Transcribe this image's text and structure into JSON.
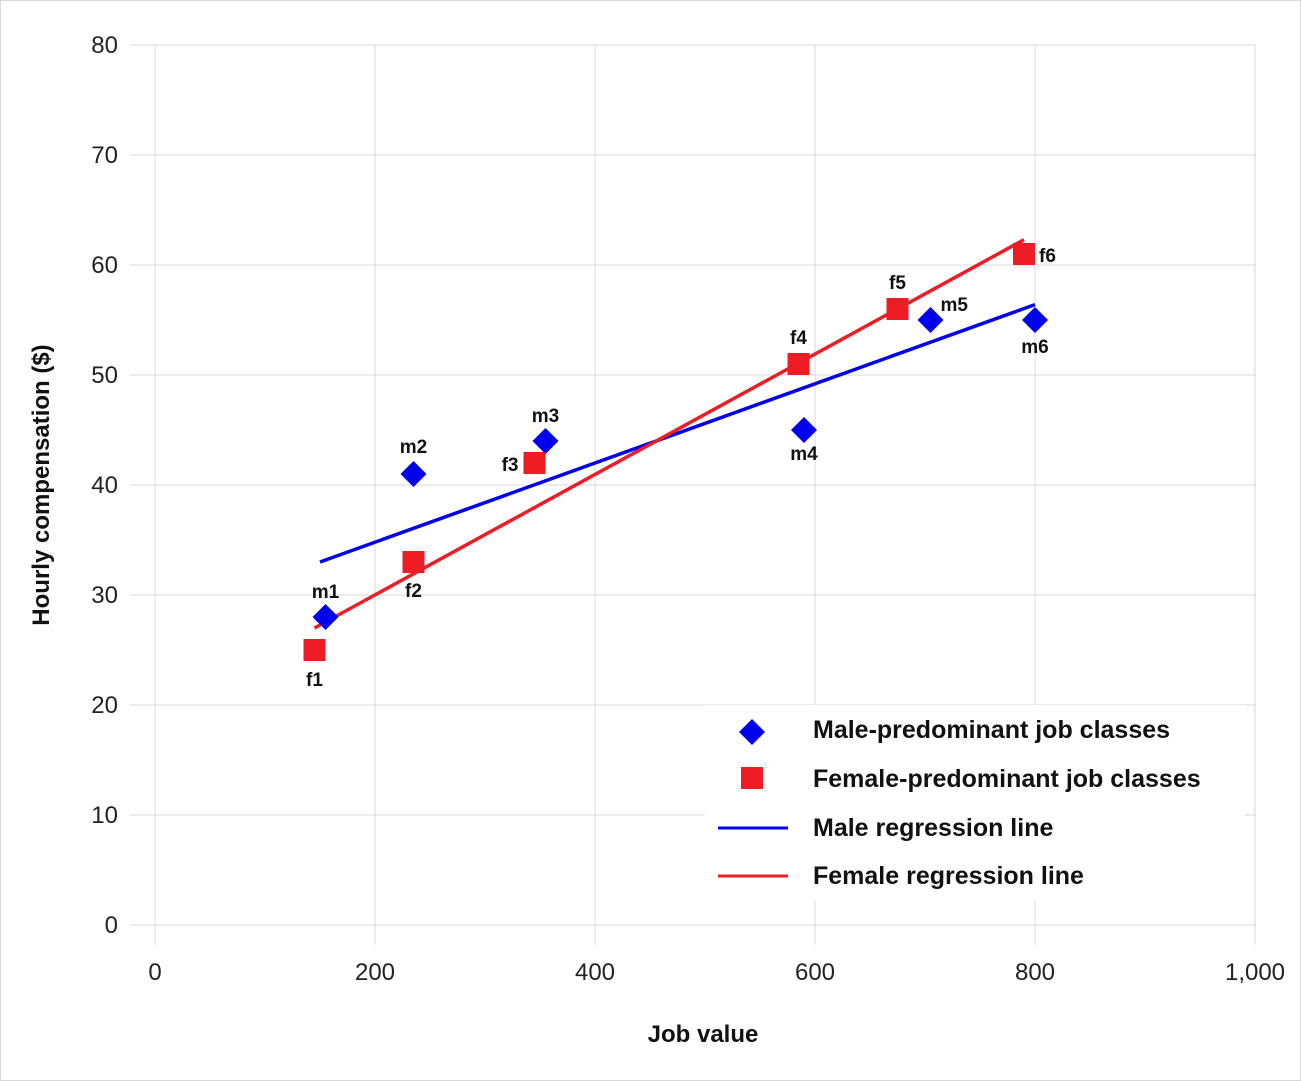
{
  "chart_data": {
    "type": "scatter",
    "xlabel": "Job value",
    "ylabel": "Hourly compensation ($)",
    "xlim": [
      0,
      1000
    ],
    "ylim": [
      0,
      80
    ],
    "x_ticks": [
      "0",
      "200",
      "400",
      "600",
      "800",
      "1,000"
    ],
    "y_ticks": [
      "0",
      "10",
      "20",
      "30",
      "40",
      "50",
      "60",
      "70",
      "80"
    ],
    "grid": true,
    "legend_position": "bottom-right",
    "series": [
      {
        "name": "Male-predominant job classes",
        "marker": "diamond",
        "color": "#0000ee",
        "points": [
          {
            "label": "m1",
            "x": 155,
            "y": 28
          },
          {
            "label": "m2",
            "x": 235,
            "y": 41
          },
          {
            "label": "m3",
            "x": 355,
            "y": 44
          },
          {
            "label": "m4",
            "x": 590,
            "y": 45
          },
          {
            "label": "m5",
            "x": 705,
            "y": 55
          },
          {
            "label": "m6",
            "x": 800,
            "y": 55
          }
        ]
      },
      {
        "name": "Female-predominant job classes",
        "marker": "square",
        "color": "#ee1c24",
        "points": [
          {
            "label": "f1",
            "x": 145,
            "y": 25
          },
          {
            "label": "f2",
            "x": 235,
            "y": 33
          },
          {
            "label": "f3",
            "x": 345,
            "y": 42
          },
          {
            "label": "f4",
            "x": 585,
            "y": 51
          },
          {
            "label": "f5",
            "x": 675,
            "y": 56
          },
          {
            "label": "f6",
            "x": 790,
            "y": 61
          }
        ]
      }
    ],
    "lines": [
      {
        "name": "Male regression line",
        "color": "#0000ee",
        "x": [
          150,
          800
        ],
        "y": [
          33,
          56.4
        ]
      },
      {
        "name": "Female regression line",
        "color": "#ee1c24",
        "x": [
          145,
          790
        ],
        "y": [
          27,
          62.3
        ]
      }
    ]
  }
}
